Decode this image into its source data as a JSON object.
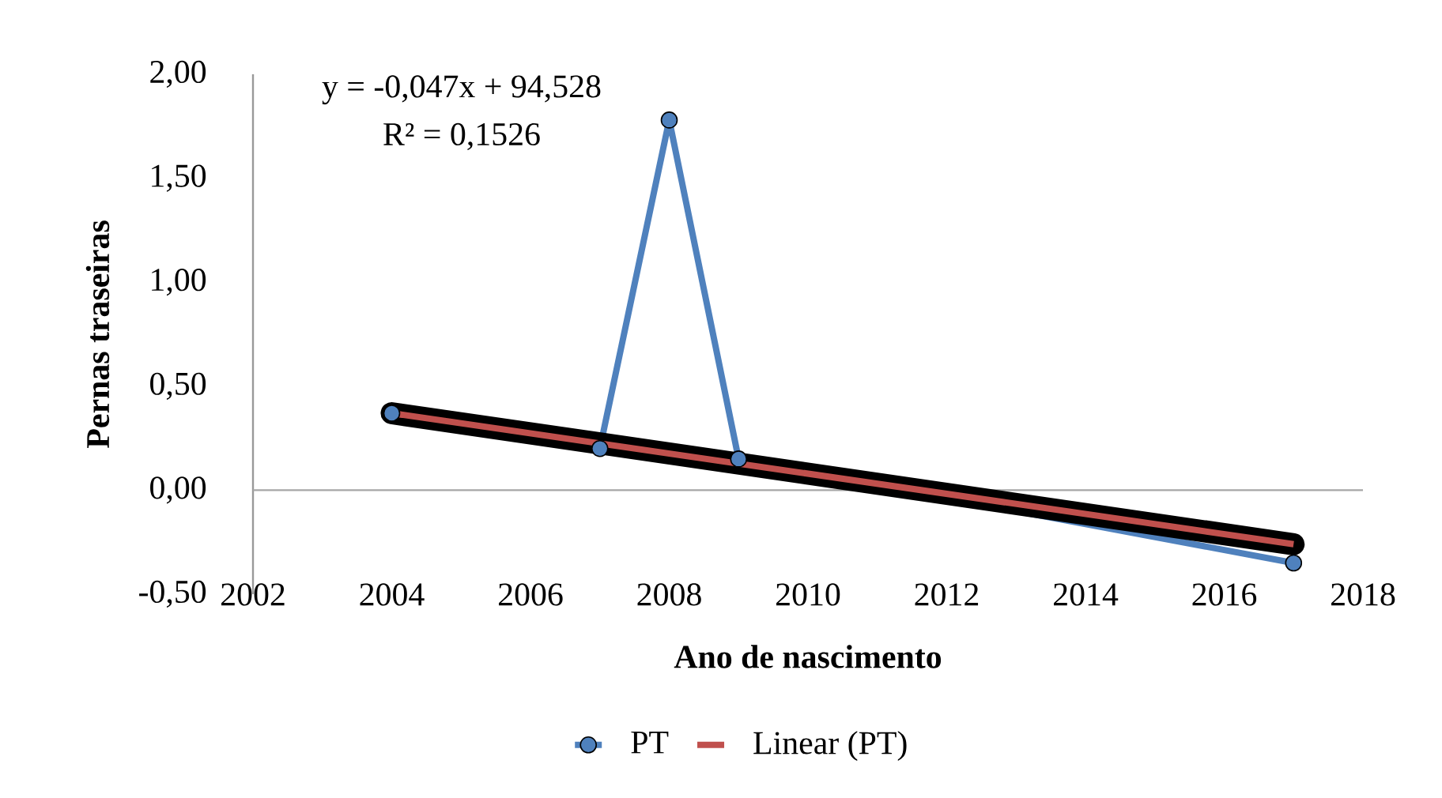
{
  "chart_data": {
    "type": "line",
    "xlabel": "Ano de nascimento",
    "ylabel": "Pernas traseiras",
    "xlim": [
      2002,
      2018
    ],
    "xticks": [
      2002,
      2004,
      2006,
      2008,
      2010,
      2012,
      2014,
      2016,
      2018
    ],
    "ylim": [
      -0.5,
      2.0
    ],
    "yticks": [
      {
        "value": -0.5,
        "label": "-0,50"
      },
      {
        "value": 0,
        "label": "0,00"
      },
      {
        "value": 0.5,
        "label": "0,50"
      },
      {
        "value": 1.0,
        "label": "1,00"
      },
      {
        "value": 1.5,
        "label": "1,50"
      },
      {
        "value": 2.0,
        "label": "2,00"
      }
    ],
    "series": [
      {
        "name": "PT",
        "color": "#4f81bd",
        "marker": "circle",
        "x": [
          2004,
          2007,
          2008,
          2009,
          2017
        ],
        "values": [
          0.37,
          0.2,
          1.78,
          0.15,
          -0.35
        ]
      },
      {
        "name": "Linear (PT)",
        "color": "#c0504d",
        "marker": "none",
        "line_style": "solid",
        "x": [
          2004,
          2017
        ],
        "values": [
          0.37,
          -0.26
        ]
      }
    ],
    "annotations": [
      "y = -0,047x + 94,528",
      "R² = 0,1526"
    ],
    "ref_lines": [
      {
        "axis": "y",
        "value": 0,
        "color": "#a6a6a6"
      }
    ],
    "grid": false,
    "legend": "bottom"
  }
}
